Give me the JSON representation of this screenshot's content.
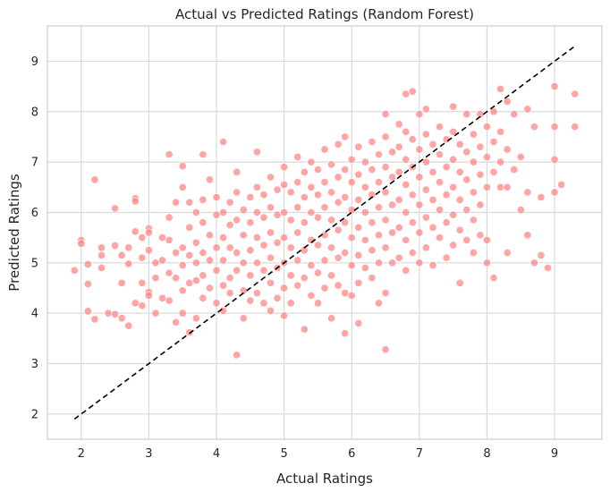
{
  "chart_data": {
    "type": "scatter",
    "title": "Actual vs Predicted Ratings (Random Forest)",
    "xlabel": "Actual Ratings",
    "ylabel": "Predicted Ratings",
    "xlim": [
      1.5,
      9.7
    ],
    "ylim": [
      1.5,
      9.7
    ],
    "xticks": [
      2,
      3,
      4,
      5,
      6,
      7,
      8,
      9
    ],
    "yticks": [
      2,
      3,
      4,
      5,
      6,
      7,
      8,
      9
    ],
    "xtick_labels": [
      "2",
      "3",
      "4",
      "5",
      "6",
      "7",
      "8",
      "9"
    ],
    "ytick_labels": [
      "2",
      "3",
      "4",
      "5",
      "6",
      "7",
      "8",
      "9"
    ],
    "grid": true,
    "point_color": "#ff7f7f",
    "reference_line": {
      "style": "dashed",
      "color": "#000000",
      "x": [
        1.9,
        9.3
      ],
      "y": [
        1.9,
        9.3
      ]
    },
    "points": [
      [
        1.9,
        4.85
      ],
      [
        2.0,
        5.45
      ],
      [
        2.0,
        5.38
      ],
      [
        2.1,
        4.97
      ],
      [
        2.1,
        4.58
      ],
      [
        2.1,
        4.04
      ],
      [
        2.2,
        6.65
      ],
      [
        2.2,
        3.88
      ],
      [
        2.3,
        5.3
      ],
      [
        2.3,
        5.15
      ],
      [
        2.3,
        4.9
      ],
      [
        2.4,
        4.0
      ],
      [
        2.5,
        6.08
      ],
      [
        2.5,
        5.34
      ],
      [
        2.5,
        3.98
      ],
      [
        2.6,
        5.15
      ],
      [
        2.6,
        4.6
      ],
      [
        2.6,
        3.9
      ],
      [
        2.7,
        5.3
      ],
      [
        2.7,
        4.98
      ],
      [
        2.7,
        3.75
      ],
      [
        2.8,
        6.28
      ],
      [
        2.8,
        6.22
      ],
      [
        2.8,
        5.62
      ],
      [
        2.8,
        4.2
      ],
      [
        2.9,
        5.5
      ],
      [
        2.9,
        5.1
      ],
      [
        2.9,
        4.6
      ],
      [
        2.9,
        4.15
      ],
      [
        3.0,
        5.68
      ],
      [
        3.0,
        5.6
      ],
      [
        3.0,
        5.25
      ],
      [
        3.0,
        4.42
      ],
      [
        3.0,
        4.35
      ],
      [
        3.1,
        5.0
      ],
      [
        3.1,
        4.7
      ],
      [
        3.1,
        4.0
      ],
      [
        3.2,
        5.5
      ],
      [
        3.2,
        5.05
      ],
      [
        3.2,
        4.3
      ],
      [
        3.3,
        7.15
      ],
      [
        3.3,
        5.9
      ],
      [
        3.3,
        5.45
      ],
      [
        3.3,
        4.8
      ],
      [
        3.3,
        4.25
      ],
      [
        3.4,
        6.2
      ],
      [
        3.4,
        5.2
      ],
      [
        3.4,
        4.7
      ],
      [
        3.4,
        3.82
      ],
      [
        3.5,
        6.92
      ],
      [
        3.5,
        6.5
      ],
      [
        3.5,
        5.3
      ],
      [
        3.5,
        4.95
      ],
      [
        3.5,
        4.45
      ],
      [
        3.5,
        4.0
      ],
      [
        3.6,
        6.2
      ],
      [
        3.6,
        5.7
      ],
      [
        3.6,
        5.15
      ],
      [
        3.6,
        4.6
      ],
      [
        3.6,
        3.62
      ],
      [
        3.7,
        6.0
      ],
      [
        3.7,
        5.4
      ],
      [
        3.7,
        5.0
      ],
      [
        3.7,
        4.65
      ],
      [
        3.7,
        3.9
      ],
      [
        3.8,
        7.15
      ],
      [
        3.8,
        6.25
      ],
      [
        3.8,
        5.8
      ],
      [
        3.8,
        5.2
      ],
      [
        3.8,
        4.75
      ],
      [
        3.8,
        4.3
      ],
      [
        3.9,
        6.65
      ],
      [
        3.9,
        5.55
      ],
      [
        3.9,
        5.05
      ],
      [
        3.9,
        4.5
      ],
      [
        4.0,
        6.3
      ],
      [
        4.0,
        5.95
      ],
      [
        4.0,
        5.3
      ],
      [
        4.0,
        4.85
      ],
      [
        4.0,
        4.2
      ],
      [
        4.1,
        7.4
      ],
      [
        4.1,
        6.0
      ],
      [
        4.1,
        5.5
      ],
      [
        4.1,
        5.05
      ],
      [
        4.1,
        4.55
      ],
      [
        4.1,
        4.05
      ],
      [
        4.2,
        6.2
      ],
      [
        4.2,
        5.75
      ],
      [
        4.2,
        5.3
      ],
      [
        4.2,
        4.7
      ],
      [
        4.2,
        4.4
      ],
      [
        4.3,
        6.8
      ],
      [
        4.3,
        6.4
      ],
      [
        4.3,
        5.85
      ],
      [
        4.3,
        5.2
      ],
      [
        4.3,
        4.85
      ],
      [
        4.3,
        3.17
      ],
      [
        4.4,
        6.05
      ],
      [
        4.4,
        5.55
      ],
      [
        4.4,
        5.0
      ],
      [
        4.4,
        4.45
      ],
      [
        4.4,
        3.9
      ],
      [
        4.5,
        6.3
      ],
      [
        4.5,
        5.8
      ],
      [
        4.5,
        5.25
      ],
      [
        4.5,
        4.75
      ],
      [
        4.5,
        4.25
      ],
      [
        4.6,
        7.2
      ],
      [
        4.6,
        6.5
      ],
      [
        4.6,
        6.0
      ],
      [
        4.6,
        5.5
      ],
      [
        4.6,
        5.0
      ],
      [
        4.6,
        4.4
      ],
      [
        4.7,
        6.35
      ],
      [
        4.7,
        5.9
      ],
      [
        4.7,
        5.35
      ],
      [
        4.7,
        4.85
      ],
      [
        4.7,
        4.2
      ],
      [
        4.8,
        6.7
      ],
      [
        4.8,
        6.1
      ],
      [
        4.8,
        5.6
      ],
      [
        4.8,
        5.1
      ],
      [
        4.8,
        4.6
      ],
      [
        4.8,
        4.05
      ],
      [
        4.9,
        6.45
      ],
      [
        4.9,
        5.95
      ],
      [
        4.9,
        5.4
      ],
      [
        4.9,
        4.9
      ],
      [
        4.9,
        4.3
      ],
      [
        5.0,
        6.9
      ],
      [
        5.0,
        6.55
      ],
      [
        5.0,
        6.0
      ],
      [
        5.0,
        5.5
      ],
      [
        5.0,
        5.0
      ],
      [
        5.0,
        4.5
      ],
      [
        5.0,
        3.95
      ],
      [
        5.1,
        6.4
      ],
      [
        5.1,
        5.85
      ],
      [
        5.1,
        5.3
      ],
      [
        5.1,
        4.75
      ],
      [
        5.1,
        4.2
      ],
      [
        5.2,
        7.1
      ],
      [
        5.2,
        6.6
      ],
      [
        5.2,
        6.1
      ],
      [
        5.2,
        5.6
      ],
      [
        5.2,
        5.05
      ],
      [
        5.2,
        4.55
      ],
      [
        5.3,
        6.8
      ],
      [
        5.3,
        6.3
      ],
      [
        5.3,
        5.8
      ],
      [
        5.3,
        5.25
      ],
      [
        5.3,
        4.7
      ],
      [
        5.3,
        3.68
      ],
      [
        5.4,
        7.0
      ],
      [
        5.4,
        6.5
      ],
      [
        5.4,
        6.0
      ],
      [
        5.4,
        5.45
      ],
      [
        5.4,
        4.95
      ],
      [
        5.4,
        4.35
      ],
      [
        5.5,
        6.85
      ],
      [
        5.5,
        6.35
      ],
      [
        5.5,
        5.9
      ],
      [
        5.5,
        5.35
      ],
      [
        5.5,
        4.8
      ],
      [
        5.5,
        4.2
      ],
      [
        5.6,
        7.25
      ],
      [
        5.6,
        6.6
      ],
      [
        5.6,
        6.1
      ],
      [
        5.6,
        5.55
      ],
      [
        5.6,
        5.05
      ],
      [
        5.6,
        4.5
      ],
      [
        5.7,
        6.95
      ],
      [
        5.7,
        6.4
      ],
      [
        5.7,
        5.85
      ],
      [
        5.7,
        5.3
      ],
      [
        5.7,
        4.75
      ],
      [
        5.7,
        3.9
      ],
      [
        5.8,
        7.35
      ],
      [
        5.8,
        6.7
      ],
      [
        5.8,
        6.2
      ],
      [
        5.8,
        5.65
      ],
      [
        5.8,
        5.1
      ],
      [
        5.8,
        4.55
      ],
      [
        5.9,
        7.5
      ],
      [
        5.9,
        6.85
      ],
      [
        5.9,
        6.3
      ],
      [
        5.9,
        5.8
      ],
      [
        5.9,
        5.2
      ],
      [
        5.9,
        4.4
      ],
      [
        5.9,
        3.6
      ],
      [
        6.0,
        7.05
      ],
      [
        6.0,
        6.6
      ],
      [
        6.0,
        6.05
      ],
      [
        6.0,
        5.5
      ],
      [
        6.0,
        4.95
      ],
      [
        6.0,
        4.35
      ],
      [
        6.1,
        7.3
      ],
      [
        6.1,
        6.75
      ],
      [
        6.1,
        6.25
      ],
      [
        6.1,
        5.7
      ],
      [
        6.1,
        5.15
      ],
      [
        6.1,
        4.6
      ],
      [
        6.1,
        3.8
      ],
      [
        6.2,
        7.0
      ],
      [
        6.2,
        6.5
      ],
      [
        6.2,
        6.0
      ],
      [
        6.2,
        5.45
      ],
      [
        6.2,
        4.9
      ],
      [
        6.3,
        7.4
      ],
      [
        6.3,
        6.85
      ],
      [
        6.3,
        6.35
      ],
      [
        6.3,
        5.8
      ],
      [
        6.3,
        5.25
      ],
      [
        6.3,
        4.7
      ],
      [
        6.4,
        7.15
      ],
      [
        6.4,
        6.6
      ],
      [
        6.4,
        6.1
      ],
      [
        6.4,
        5.55
      ],
      [
        6.4,
        5.0
      ],
      [
        6.4,
        4.2
      ],
      [
        6.5,
        7.95
      ],
      [
        6.5,
        7.5
      ],
      [
        6.5,
        6.9
      ],
      [
        6.5,
        6.4
      ],
      [
        6.5,
        5.85
      ],
      [
        6.5,
        5.3
      ],
      [
        6.5,
        4.4
      ],
      [
        6.5,
        3.28
      ],
      [
        6.6,
        7.2
      ],
      [
        6.6,
        6.7
      ],
      [
        6.6,
        6.15
      ],
      [
        6.6,
        5.6
      ],
      [
        6.6,
        5.0
      ],
      [
        6.7,
        7.75
      ],
      [
        6.7,
        7.3
      ],
      [
        6.7,
        6.8
      ],
      [
        6.7,
        6.25
      ],
      [
        6.7,
        5.7
      ],
      [
        6.7,
        5.1
      ],
      [
        6.8,
        8.35
      ],
      [
        6.8,
        7.6
      ],
      [
        6.8,
        7.05
      ],
      [
        6.8,
        6.55
      ],
      [
        6.8,
        6.0
      ],
      [
        6.8,
        5.45
      ],
      [
        6.8,
        4.85
      ],
      [
        6.9,
        8.4
      ],
      [
        6.9,
        7.45
      ],
      [
        6.9,
        6.9
      ],
      [
        6.9,
        6.35
      ],
      [
        6.9,
        5.8
      ],
      [
        6.9,
        5.2
      ],
      [
        7.0,
        7.95
      ],
      [
        7.0,
        7.25
      ],
      [
        7.0,
        6.7
      ],
      [
        7.0,
        6.15
      ],
      [
        7.0,
        5.6
      ],
      [
        7.0,
        5.0
      ],
      [
        7.1,
        8.05
      ],
      [
        7.1,
        7.55
      ],
      [
        7.1,
        7.0
      ],
      [
        7.1,
        6.45
      ],
      [
        7.1,
        5.9
      ],
      [
        7.1,
        5.3
      ],
      [
        7.2,
        7.35
      ],
      [
        7.2,
        6.8
      ],
      [
        7.2,
        6.25
      ],
      [
        7.2,
        5.7
      ],
      [
        7.2,
        4.95
      ],
      [
        7.3,
        7.7
      ],
      [
        7.3,
        7.15
      ],
      [
        7.3,
        6.6
      ],
      [
        7.3,
        6.05
      ],
      [
        7.3,
        5.5
      ],
      [
        7.4,
        7.45
      ],
      [
        7.4,
        6.9
      ],
      [
        7.4,
        6.35
      ],
      [
        7.4,
        5.8
      ],
      [
        7.4,
        5.1
      ],
      [
        7.5,
        8.1
      ],
      [
        7.5,
        7.6
      ],
      [
        7.5,
        7.05
      ],
      [
        7.5,
        6.5
      ],
      [
        7.5,
        5.95
      ],
      [
        7.5,
        5.35
      ],
      [
        7.6,
        7.35
      ],
      [
        7.6,
        6.8
      ],
      [
        7.6,
        6.25
      ],
      [
        7.6,
        5.65
      ],
      [
        7.6,
        4.6
      ],
      [
        7.7,
        7.95
      ],
      [
        7.7,
        7.2
      ],
      [
        7.7,
        6.65
      ],
      [
        7.7,
        6.05
      ],
      [
        7.7,
        5.45
      ],
      [
        7.8,
        7.55
      ],
      [
        7.8,
        7.0
      ],
      [
        7.8,
        6.4
      ],
      [
        7.8,
        5.85
      ],
      [
        7.8,
        5.2
      ],
      [
        7.9,
        7.95
      ],
      [
        7.9,
        7.3
      ],
      [
        7.9,
        6.75
      ],
      [
        7.9,
        6.15
      ],
      [
        7.9,
        5.55
      ],
      [
        8.0,
        7.7
      ],
      [
        8.0,
        7.1
      ],
      [
        8.0,
        6.5
      ],
      [
        8.0,
        5.45
      ],
      [
        8.0,
        5.0
      ],
      [
        8.1,
        8.0
      ],
      [
        8.1,
        7.4
      ],
      [
        8.1,
        6.8
      ],
      [
        8.1,
        4.7
      ],
      [
        8.2,
        8.45
      ],
      [
        8.2,
        7.6
      ],
      [
        8.2,
        7.0
      ],
      [
        8.2,
        6.5
      ],
      [
        8.3,
        8.2
      ],
      [
        8.3,
        7.25
      ],
      [
        8.3,
        6.5
      ],
      [
        8.3,
        5.2
      ],
      [
        8.4,
        7.95
      ],
      [
        8.4,
        6.85
      ],
      [
        8.5,
        7.1
      ],
      [
        8.5,
        6.05
      ],
      [
        8.6,
        8.05
      ],
      [
        8.6,
        6.4
      ],
      [
        8.6,
        5.55
      ],
      [
        8.7,
        7.7
      ],
      [
        8.7,
        5.0
      ],
      [
        8.8,
        6.3
      ],
      [
        8.8,
        5.15
      ],
      [
        8.9,
        4.9
      ],
      [
        9.0,
        8.5
      ],
      [
        9.0,
        7.7
      ],
      [
        9.0,
        7.05
      ],
      [
        9.0,
        6.4
      ],
      [
        9.1,
        6.55
      ],
      [
        9.3,
        8.35
      ],
      [
        9.3,
        7.7
      ]
    ]
  }
}
